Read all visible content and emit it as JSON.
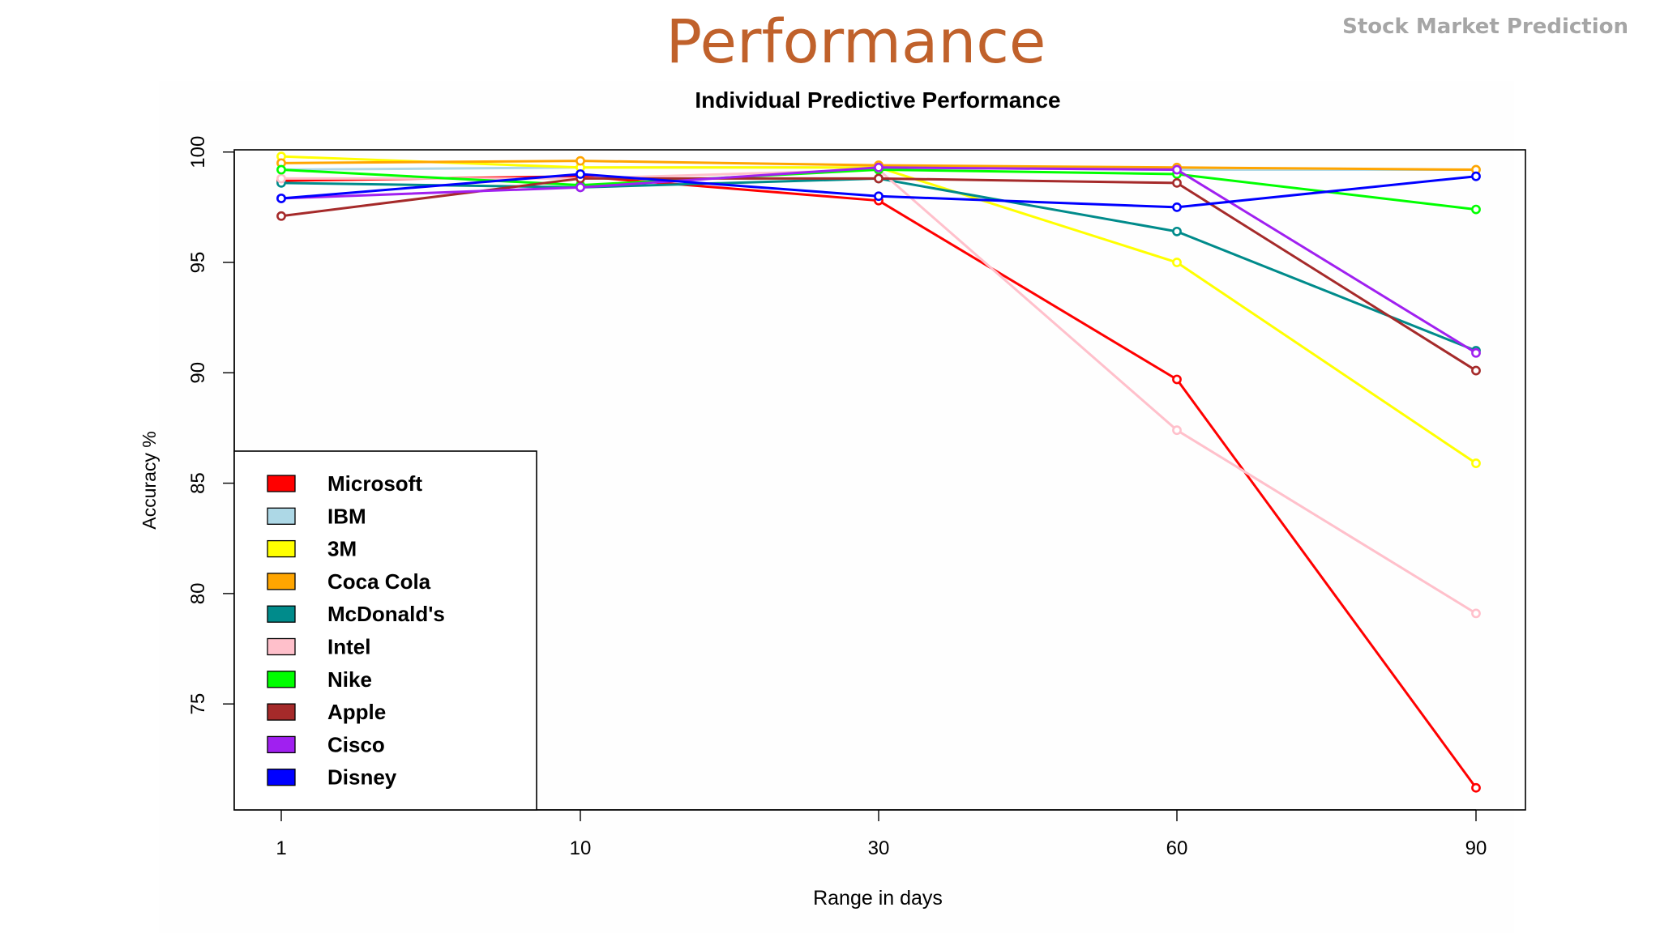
{
  "slide": {
    "title": "Performance",
    "tag": "Stock Market Prediction"
  },
  "chart_data": {
    "type": "line",
    "title": "Individual Predictive Performance",
    "xlabel": "Range in days",
    "ylabel": "Accuracy %",
    "categories": [
      "1",
      "10",
      "30",
      "60",
      "90"
    ],
    "yticks": [
      75,
      80,
      85,
      90,
      95,
      100
    ],
    "ylim": [
      70.2,
      100.1
    ],
    "legend_position": "bottom-left",
    "grid": false,
    "series": [
      {
        "name": "Microsoft",
        "color": "#ff0000",
        "values": [
          98.7,
          98.9,
          97.8,
          89.7,
          71.2
        ]
      },
      {
        "name": "IBM",
        "color": "#add8e6",
        "values": [
          99.2,
          99.3,
          99.3,
          99.2,
          99.2
        ]
      },
      {
        "name": "3M",
        "color": "#ffff00",
        "values": [
          99.8,
          99.3,
          99.3,
          95.0,
          85.9
        ]
      },
      {
        "name": "Coca Cola",
        "color": "#ffa500",
        "values": [
          99.5,
          99.6,
          99.4,
          99.3,
          99.2
        ]
      },
      {
        "name": "McDonald's",
        "color": "#008b8b",
        "values": [
          98.6,
          98.4,
          98.8,
          96.4,
          91.0
        ]
      },
      {
        "name": "Intel",
        "color": "#ffc0cb",
        "values": [
          98.8,
          98.8,
          99.2,
          87.4,
          79.1
        ]
      },
      {
        "name": "Nike",
        "color": "#00ff00",
        "values": [
          99.2,
          98.5,
          99.2,
          99.0,
          97.4
        ]
      },
      {
        "name": "Apple",
        "color": "#a52a2a",
        "values": [
          97.1,
          98.8,
          98.8,
          98.6,
          90.1
        ]
      },
      {
        "name": "Cisco",
        "color": "#a020f0",
        "values": [
          97.9,
          98.4,
          99.3,
          99.2,
          90.9
        ]
      },
      {
        "name": "Disney",
        "color": "#0000ff",
        "values": [
          97.9,
          99.0,
          98.0,
          97.5,
          98.9
        ]
      }
    ]
  }
}
